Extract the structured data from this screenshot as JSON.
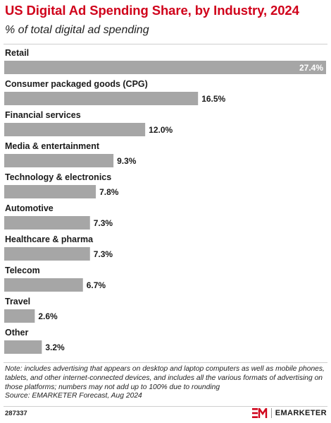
{
  "header": {
    "title": "US Digital Ad Spending Share, by Industry, 2024",
    "subtitle": "% of total digital ad spending"
  },
  "chart_data": {
    "type": "bar",
    "orientation": "horizontal",
    "categories": [
      "Retail",
      "Consumer packaged goods (CPG)",
      "Financial services",
      "Media & entertainment",
      "Technology & electronics",
      "Automotive",
      "Healthcare & pharma",
      "Telecom",
      "Travel",
      "Other"
    ],
    "values": [
      27.4,
      16.5,
      12.0,
      9.3,
      7.8,
      7.3,
      7.3,
      6.7,
      2.6,
      3.2
    ],
    "value_labels": [
      "27.4%",
      "16.5%",
      "12.0%",
      "9.3%",
      "7.8%",
      "7.3%",
      "7.3%",
      "6.7%",
      "2.6%",
      "3.2%"
    ],
    "title": "US Digital Ad Spending Share, by Industry, 2024",
    "subtitle": "% of total digital ad spending",
    "xlim": [
      0,
      27.4
    ],
    "grid": false,
    "legend": "none",
    "colors": {
      "bar": "#a6a6a6",
      "label_inside": "#ffffff",
      "label_outside": "#1a1a1a"
    }
  },
  "footer": {
    "note": "Note: includes advertising that appears on desktop and laptop computers as well as mobile phones, tablets, and other internet-connected devices, and includes all the various formats of advertising on those platforms; numbers may not add up to 100% due to rounding",
    "source": "Source: EMARKETER Forecast, Aug 2024",
    "chart_id": "287337",
    "brand": "EMARKETER",
    "logo_icon": "em-logo-icon"
  }
}
